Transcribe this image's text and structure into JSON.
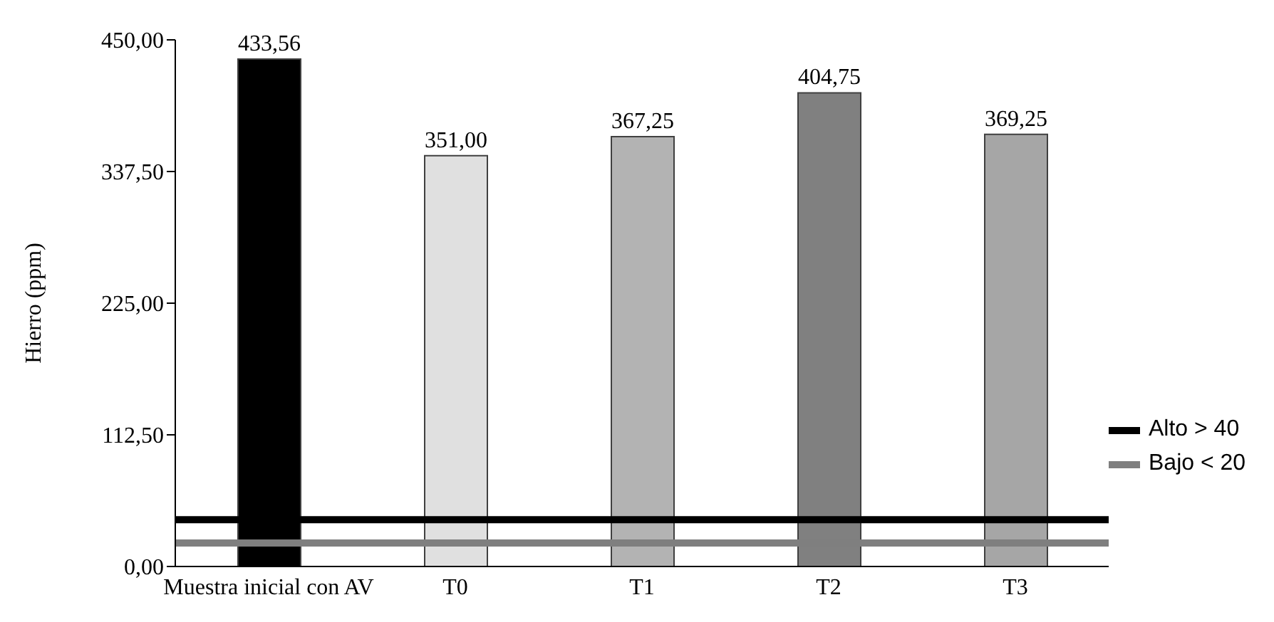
{
  "chart_data": {
    "type": "bar",
    "ylabel": "Hierro (ppm)",
    "categories": [
      "Muestra inicial con AV",
      "T0",
      "T1",
      "T2",
      "T3"
    ],
    "values": [
      433.56,
      351,
      367.25,
      404.75,
      369.25
    ],
    "colors": [
      "#000000",
      "#e0e0e0",
      "#b3b3b3",
      "#808080",
      "#a6a6a6"
    ],
    "value_labels": [
      "433,56",
      "351,00",
      "367,25",
      "404,75",
      "369,25"
    ],
    "ylim": [
      0,
      450
    ],
    "yticks": [
      {
        "value": 0,
        "label": "0,00"
      },
      {
        "value": 112.5,
        "label": "112,50"
      },
      {
        "value": 225,
        "label": "225,00"
      },
      {
        "value": 337.5,
        "label": "337,50"
      },
      {
        "value": 450,
        "label": "450,00"
      }
    ],
    "ref_lines": [
      {
        "axis": "y",
        "value": 40,
        "label": "Alto > 40",
        "color": "#000000"
      },
      {
        "axis": "y",
        "value": 20,
        "label": "Bajo < 20",
        "color": "#7f7f7f"
      }
    ],
    "legend": "right"
  }
}
